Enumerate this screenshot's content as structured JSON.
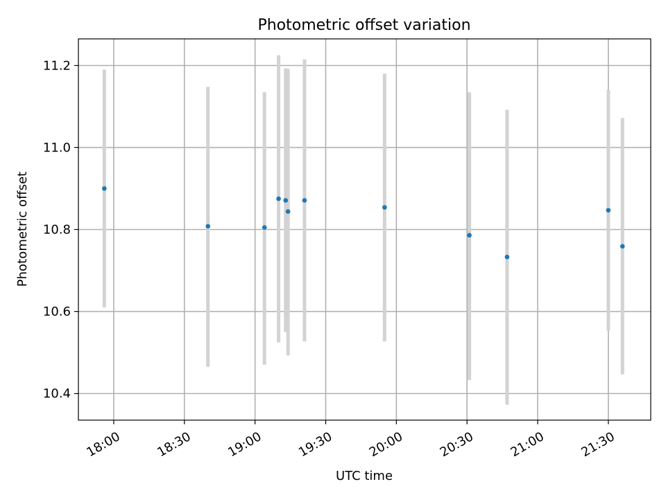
{
  "chart_data": {
    "type": "scatter",
    "title": "Photometric offset variation",
    "xlabel": "UTC time",
    "ylabel": "Photometric offset",
    "xlim": [
      "17:45",
      "21:48"
    ],
    "ylim": [
      10.335,
      11.265
    ],
    "xticks": [
      "18:00",
      "18:30",
      "19:00",
      "19:30",
      "20:00",
      "20:30",
      "21:00",
      "21:30"
    ],
    "yticks": [
      10.4,
      10.6,
      10.8,
      11.0,
      11.2
    ],
    "ytick_labels": [
      "10.4",
      "10.6",
      "10.8",
      "11.0",
      "11.2"
    ],
    "grid": true,
    "marker_color": "#1f77b4",
    "errorbar_color": "#d3d3d3",
    "points": [
      {
        "x": "17:56",
        "y": 10.9,
        "err_low": 10.61,
        "err_high": 11.19
      },
      {
        "x": "18:40",
        "y": 10.808,
        "err_low": 10.465,
        "err_high": 11.148
      },
      {
        "x": "19:04",
        "y": 10.805,
        "err_low": 10.47,
        "err_high": 11.135
      },
      {
        "x": "19:10",
        "y": 10.875,
        "err_low": 10.525,
        "err_high": 11.225
      },
      {
        "x": "19:13",
        "y": 10.871,
        "err_low": 10.55,
        "err_high": 11.193
      },
      {
        "x": "19:14",
        "y": 10.844,
        "err_low": 10.493,
        "err_high": 11.192
      },
      {
        "x": "19:21",
        "y": 10.871,
        "err_low": 10.527,
        "err_high": 11.215
      },
      {
        "x": "19:55",
        "y": 10.854,
        "err_low": 10.527,
        "err_high": 11.18
      },
      {
        "x": "20:31",
        "y": 10.786,
        "err_low": 10.433,
        "err_high": 11.135
      },
      {
        "x": "20:47",
        "y": 10.733,
        "err_low": 10.373,
        "err_high": 11.092
      },
      {
        "x": "21:30",
        "y": 10.847,
        "err_low": 10.553,
        "err_high": 11.141
      },
      {
        "x": "21:36",
        "y": 10.759,
        "err_low": 10.447,
        "err_high": 11.072
      }
    ]
  }
}
